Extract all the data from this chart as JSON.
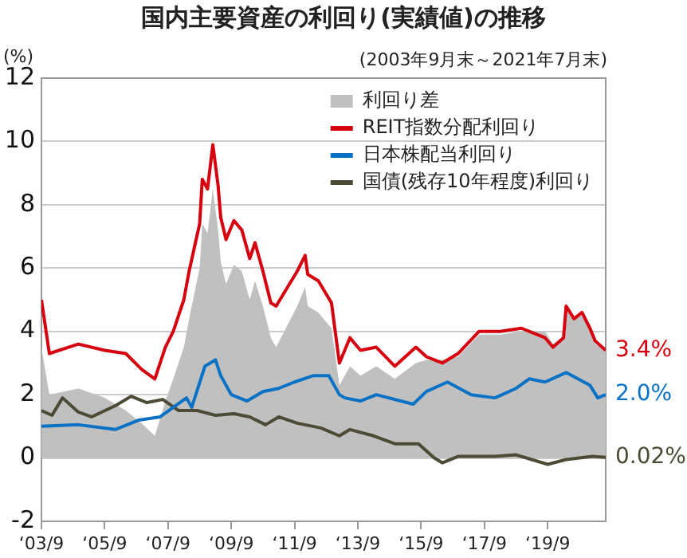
{
  "chart_data": {
    "type": "line",
    "title": "国内主要資産の利回り(実績値)の推移",
    "subtitle": "(2003年9月末～2021年7月末)",
    "ylabel": "(%)",
    "xlim": [
      "2003-09",
      "2021-07"
    ],
    "xticks": [
      {
        "value": "2003-09",
        "label": "‘03/9"
      },
      {
        "value": "2005-09",
        "label": "‘05/9"
      },
      {
        "value": "2007-09",
        "label": "‘07/9"
      },
      {
        "value": "2009-09",
        "label": "‘09/9"
      },
      {
        "value": "2011-09",
        "label": "‘11/9"
      },
      {
        "value": "2013-09",
        "label": "‘13/9"
      },
      {
        "value": "2015-09",
        "label": "‘15/9"
      },
      {
        "value": "2017-09",
        "label": "‘17/9"
      },
      {
        "value": "2019-09",
        "label": "‘19/9"
      }
    ],
    "ylim": [
      -2,
      12
    ],
    "yticks": [
      -2,
      0,
      2,
      4,
      6,
      8,
      10,
      12
    ],
    "grid": "y",
    "legend": "top right",
    "series": [
      {
        "name": "利回り差",
        "type": "area",
        "color": "#c0c0c0",
        "x": [
          "2003-09",
          "2003-12",
          "2004-11",
          "2005-09",
          "2006-05",
          "2006-11",
          "2007-04",
          "2007-08",
          "2007-11",
          "2008-03",
          "2008-05",
          "2008-09",
          "2008-10",
          "2008-12",
          "2009-02",
          "2009-04",
          "2009-05",
          "2009-07",
          "2009-10",
          "2010-01",
          "2010-04",
          "2010-06",
          "2010-09",
          "2010-12",
          "2011-02",
          "2011-10",
          "2012-01",
          "2012-02",
          "2012-06",
          "2012-11",
          "2013-02",
          "2013-06",
          "2013-10",
          "2014-04",
          "2014-11",
          "2015-07",
          "2015-11",
          "2016-05",
          "2016-11",
          "2017-07",
          "2018-03",
          "2018-11",
          "2019-08",
          "2019-11",
          "2020-03",
          "2020-04",
          "2020-07",
          "2020-10",
          "2021-01",
          "2021-03",
          "2021-07"
        ],
        "values": [
          3.5,
          2.0,
          2.2,
          1.9,
          1.5,
          1.1,
          0.7,
          1.8,
          2.5,
          3.5,
          4.4,
          6.0,
          7.4,
          7.1,
          8.5,
          7.2,
          6.2,
          5.5,
          6.1,
          5.9,
          5.0,
          5.6,
          4.8,
          3.8,
          3.5,
          4.8,
          5.4,
          4.8,
          4.6,
          4.1,
          2.3,
          2.9,
          2.6,
          2.9,
          2.5,
          3.0,
          3.1,
          3.1,
          3.2,
          3.9,
          3.9,
          4.0,
          4.0,
          3.6,
          3.8,
          4.8,
          4.4,
          4.5,
          4.0,
          3.6,
          3.4
        ]
      },
      {
        "name": "REIT指数分配利回り",
        "color": "#d7000f",
        "x": [
          "2003-09",
          "2003-12",
          "2004-11",
          "2005-09",
          "2006-05",
          "2006-11",
          "2007-04",
          "2007-08",
          "2007-11",
          "2008-03",
          "2008-05",
          "2008-09",
          "2008-10",
          "2008-12",
          "2009-02",
          "2009-04",
          "2009-05",
          "2009-07",
          "2009-10",
          "2010-01",
          "2010-04",
          "2010-06",
          "2010-09",
          "2010-12",
          "2011-02",
          "2011-10",
          "2012-01",
          "2012-02",
          "2012-06",
          "2012-11",
          "2013-02",
          "2013-06",
          "2013-10",
          "2014-04",
          "2014-11",
          "2015-07",
          "2015-11",
          "2016-05",
          "2016-11",
          "2017-07",
          "2018-03",
          "2018-11",
          "2019-08",
          "2019-11",
          "2020-03",
          "2020-04",
          "2020-07",
          "2020-10",
          "2021-01",
          "2021-03",
          "2021-07"
        ],
        "values": [
          5.0,
          3.3,
          3.6,
          3.4,
          3.3,
          2.8,
          2.5,
          3.5,
          4.0,
          5.0,
          5.9,
          7.4,
          8.8,
          8.5,
          9.9,
          8.6,
          7.6,
          6.9,
          7.5,
          7.2,
          6.3,
          6.8,
          5.9,
          4.9,
          4.8,
          5.9,
          6.4,
          5.8,
          5.6,
          4.9,
          3.0,
          3.8,
          3.4,
          3.5,
          2.9,
          3.5,
          3.2,
          3.0,
          3.3,
          4.0,
          4.0,
          4.1,
          3.8,
          3.5,
          3.8,
          4.8,
          4.4,
          4.6,
          4.1,
          3.7,
          3.4
        ],
        "value_labels": [
          null,
          null,
          null,
          null,
          null,
          null,
          null,
          null,
          null,
          null,
          null,
          null,
          null,
          null,
          null,
          null,
          null,
          null,
          null,
          null,
          null,
          null,
          null,
          null,
          null,
          null,
          null,
          null,
          null,
          null,
          null,
          null,
          null,
          null,
          null,
          null,
          null,
          null,
          null,
          null,
          null,
          null,
          null,
          null,
          null,
          null,
          null,
          null,
          null,
          null,
          "3.4%"
        ]
      },
      {
        "name": "日本株配当利回り",
        "color": "#0a72c4",
        "x": [
          "2003-09",
          "2004-11",
          "2006-01",
          "2006-10",
          "2007-06",
          "2008-04",
          "2008-06",
          "2008-11",
          "2009-03",
          "2009-05",
          "2009-09",
          "2010-03",
          "2010-09",
          "2011-03",
          "2011-09",
          "2012-04",
          "2012-10",
          "2013-02",
          "2013-04",
          "2013-10",
          "2014-04",
          "2015-06",
          "2015-11",
          "2016-07",
          "2017-04",
          "2018-01",
          "2018-09",
          "2019-02",
          "2019-08",
          "2020-04",
          "2021-01",
          "2021-04",
          "2021-07"
        ],
        "values": [
          1.0,
          1.05,
          0.9,
          1.2,
          1.3,
          1.9,
          1.6,
          2.9,
          3.1,
          2.6,
          2.0,
          1.8,
          2.1,
          2.2,
          2.4,
          2.6,
          2.6,
          2.0,
          1.9,
          1.8,
          2.0,
          1.7,
          2.1,
          2.4,
          2.0,
          1.9,
          2.2,
          2.5,
          2.4,
          2.7,
          2.3,
          1.9,
          2.0
        ],
        "value_labels": [
          null,
          null,
          null,
          null,
          null,
          null,
          null,
          null,
          null,
          null,
          null,
          null,
          null,
          null,
          null,
          null,
          null,
          null,
          null,
          null,
          null,
          null,
          null,
          null,
          null,
          null,
          null,
          null,
          null,
          null,
          null,
          null,
          "2.0%"
        ]
      },
      {
        "name": "国債(残存10年程度)利回り",
        "color": "#4d4b35",
        "x": [
          "2003-09",
          "2004-01",
          "2004-05",
          "2004-11",
          "2005-04",
          "2006-01",
          "2006-07",
          "2007-01",
          "2007-07",
          "2008-01",
          "2008-08",
          "2009-03",
          "2009-10",
          "2010-04",
          "2010-10",
          "2011-03",
          "2011-10",
          "2012-07",
          "2013-02",
          "2013-06",
          "2014-03",
          "2014-11",
          "2015-08",
          "2016-02",
          "2016-05",
          "2016-11",
          "2018-01",
          "2018-09",
          "2019-09",
          "2020-04",
          "2021-02",
          "2021-07"
        ],
        "values": [
          1.5,
          1.35,
          1.9,
          1.45,
          1.3,
          1.65,
          1.95,
          1.75,
          1.85,
          1.5,
          1.5,
          1.35,
          1.4,
          1.3,
          1.05,
          1.3,
          1.1,
          0.95,
          0.7,
          0.9,
          0.7,
          0.45,
          0.45,
          0.0,
          -0.15,
          0.05,
          0.05,
          0.1,
          -0.2,
          -0.05,
          0.05,
          0.02
        ],
        "value_labels": [
          null,
          null,
          null,
          null,
          null,
          null,
          null,
          null,
          null,
          null,
          null,
          null,
          null,
          null,
          null,
          null,
          null,
          null,
          null,
          null,
          null,
          null,
          null,
          null,
          null,
          null,
          null,
          null,
          null,
          null,
          null,
          "0.02%"
        ]
      }
    ]
  }
}
